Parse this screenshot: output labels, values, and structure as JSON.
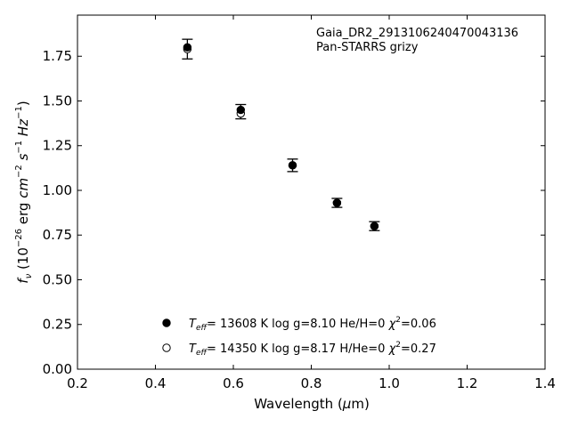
{
  "chart_data": {
    "type": "scatter",
    "title": "",
    "xlabel": "Wavelength (μm)",
    "ylabel": "f_ν (10^-26 erg cm^-2 s^-1 Hz^-1)",
    "xlim": [
      0.2,
      1.4
    ],
    "ylim": [
      0.0,
      1.98
    ],
    "xticks": [
      0.2,
      0.4,
      0.6,
      0.8,
      1.0,
      1.2,
      1.4
    ],
    "yticks": [
      0.0,
      0.25,
      0.5,
      0.75,
      1.0,
      1.25,
      1.5,
      1.75
    ],
    "grid": false,
    "annotation": [
      "Gaia_DR2_2913106240470043136",
      "Pan-STARRS grizy"
    ],
    "observed": {
      "x": [
        0.482,
        0.619,
        0.752,
        0.866,
        0.962
      ],
      "y": [
        1.79,
        1.44,
        1.14,
        0.93,
        0.8
      ],
      "yerr": [
        0.055,
        0.04,
        0.035,
        0.025,
        0.025
      ]
    },
    "series": [
      {
        "marker": "filled",
        "label": "T_eff= 13608 K  log g=8.10  He/H=0  χ²=0.06",
        "x": [
          0.482,
          0.619,
          0.752,
          0.866,
          0.962
        ],
        "y": [
          1.8,
          1.45,
          1.14,
          0.93,
          0.8
        ]
      },
      {
        "marker": "open",
        "label": "T_eff= 14350 K  log g=8.17  H/He=0  χ²=0.27",
        "x": [
          0.482,
          0.619,
          0.752,
          0.866,
          0.962
        ],
        "y": [
          1.79,
          1.43,
          1.14,
          0.93,
          0.8
        ]
      }
    ],
    "legend_position": "lower-left"
  },
  "legend": {
    "s1": {
      "pre": "= 13608 K  log g=8.10  He/H=0  ",
      "post": "=0.06"
    },
    "s2": {
      "pre": "= 14350 K  log g=8.17  H/He=0  ",
      "post": "=0.27"
    }
  }
}
